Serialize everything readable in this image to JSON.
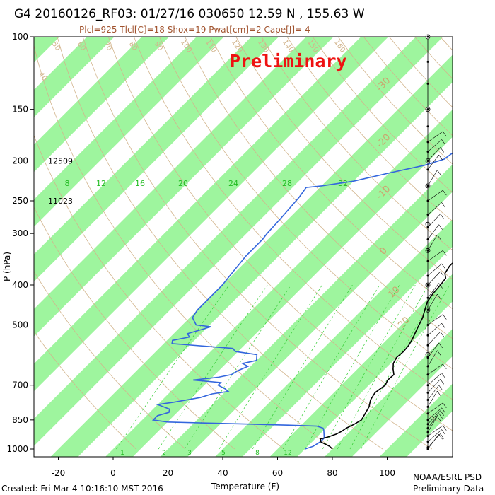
{
  "header": {
    "title": "G4 20160126_RF03: 01/27/16 030650  12.59 N , 155.63 W",
    "indices": "Plcl=925 Tlcl[C]=18 Shox=19 Pwat[cm]=2 Cape[J]= 4"
  },
  "watermark": "Preliminary",
  "footer": {
    "created": "Created: Fri Mar  4 10:16:10 MST 2016",
    "org": "NOAA/ESRL PSD",
    "note": "Preliminary Data"
  },
  "chart_data": {
    "type": "line",
    "title": "G4 20160126_RF03: 01/27/16 030650  12.59 N , 155.63 W",
    "xlabel": "Temperature (F)",
    "ylabel": "P (hPa)",
    "x_ticks": [
      -20,
      0,
      20,
      40,
      60,
      80,
      100
    ],
    "y_ticks": [
      100,
      150,
      200,
      250,
      300,
      400,
      500,
      700,
      850,
      1000
    ],
    "xlim": [
      -28,
      100
    ],
    "ylim": [
      1000,
      100
    ],
    "y_scale": "log",
    "height_labels": [
      {
        "pressure": 200,
        "text": "12509"
      },
      {
        "pressure": 250,
        "text": "11023"
      }
    ],
    "mixing_ratio_labels": [
      "8",
      "12",
      "16",
      "20",
      "24",
      "28",
      "32"
    ],
    "mixing_ratio_bottom_labels": [
      "1",
      "2",
      "3",
      "5",
      "8",
      "12"
    ],
    "theta_labels": [
      "40",
      "50",
      "60",
      "70",
      "80",
      "90",
      "100",
      "110",
      "120",
      "130",
      "140",
      "150",
      "160"
    ],
    "skew_temp_labels": [
      "-30",
      "-20",
      "-10",
      "0",
      "10",
      "20"
    ],
    "series": [
      {
        "name": "Temperature",
        "color": "#000000",
        "points": [
          [
            1000,
            80
          ],
          [
            985,
            78
          ],
          [
            970,
            75
          ],
          [
            960,
            73
          ],
          [
            945,
            72
          ],
          [
            935,
            74
          ],
          [
            920,
            76
          ],
          [
            905,
            77
          ],
          [
            890,
            77.5
          ],
          [
            870,
            79
          ],
          [
            850,
            80
          ],
          [
            820,
            79
          ],
          [
            790,
            78
          ],
          [
            760,
            76
          ],
          [
            730,
            75
          ],
          [
            700,
            76
          ],
          [
            680,
            75
          ],
          [
            660,
            75.3
          ],
          [
            640,
            73
          ],
          [
            620,
            71
          ],
          [
            600,
            70
          ],
          [
            580,
            70.4
          ],
          [
            560,
            70
          ],
          [
            540,
            69
          ],
          [
            510,
            67
          ],
          [
            480,
            65
          ],
          [
            460,
            63
          ],
          [
            440,
            61
          ],
          [
            420,
            60
          ],
          [
            400,
            59.6
          ],
          [
            385,
            59
          ],
          [
            375,
            57
          ],
          [
            360,
            56
          ],
          [
            345,
            56
          ],
          [
            330,
            55
          ],
          [
            315,
            54
          ],
          [
            300,
            54
          ],
          [
            285,
            52
          ],
          [
            270,
            50
          ],
          [
            255,
            48
          ],
          [
            240,
            46
          ],
          [
            225,
            44
          ],
          [
            210,
            42
          ],
          [
            195,
            37
          ],
          [
            185,
            37
          ],
          [
            175,
            36
          ],
          [
            170,
            34
          ]
        ]
      },
      {
        "name": "Dew point",
        "color": "#3366dd",
        "points": [
          [
            1000,
            70
          ],
          [
            985,
            72
          ],
          [
            960,
            73
          ],
          [
            940,
            73
          ],
          [
            920,
            71.5
          ],
          [
            900,
            70
          ],
          [
            890,
            69
          ],
          [
            880,
            66
          ],
          [
            875,
            55
          ],
          [
            870,
            40
          ],
          [
            865,
            25
          ],
          [
            860,
            10
          ],
          [
            850,
            4
          ],
          [
            830,
            4
          ],
          [
            815,
            7
          ],
          [
            800,
            6
          ],
          [
            780,
            0
          ],
          [
            770,
            5
          ],
          [
            750,
            13
          ],
          [
            735,
            16
          ],
          [
            725,
            21
          ],
          [
            715,
            19
          ],
          [
            700,
            15
          ],
          [
            690,
            15
          ],
          [
            680,
            4
          ],
          [
            670,
            12
          ],
          [
            660,
            16
          ],
          [
            645,
            17
          ],
          [
            630,
            19
          ],
          [
            620,
            16
          ],
          [
            610,
            20
          ],
          [
            600,
            19
          ],
          [
            590,
            18
          ],
          [
            580,
            9
          ],
          [
            570,
            7
          ],
          [
            555,
            -17
          ],
          [
            545,
            -18
          ],
          [
            535,
            -13
          ],
          [
            525,
            -15
          ],
          [
            512,
            -11
          ],
          [
            505,
            -9
          ],
          [
            500,
            -15
          ],
          [
            480,
            -19
          ],
          [
            460,
            -20
          ],
          [
            430,
            -20
          ],
          [
            400,
            -20
          ],
          [
            370,
            -21
          ],
          [
            340,
            -22
          ],
          [
            310,
            -22
          ],
          [
            300,
            -22.5
          ],
          [
            275,
            -23
          ],
          [
            245,
            -24
          ],
          [
            232,
            -25
          ],
          [
            230,
            -20
          ],
          [
            224,
            -10
          ],
          [
            214,
            0
          ],
          [
            205,
            10
          ],
          [
            198,
            15
          ],
          [
            190,
            16
          ]
        ]
      }
    ],
    "wind_profile": {
      "color": "#000000",
      "levels_hPa": [
        100,
        115,
        130,
        150,
        165,
        180,
        190,
        200,
        210,
        230,
        250,
        270,
        290,
        310,
        330,
        350,
        380,
        400,
        430,
        460,
        500,
        530,
        560,
        600,
        630,
        660,
        700,
        730,
        760,
        790,
        820,
        850,
        870,
        890,
        910,
        930,
        960,
        990,
        1000
      ]
    }
  }
}
